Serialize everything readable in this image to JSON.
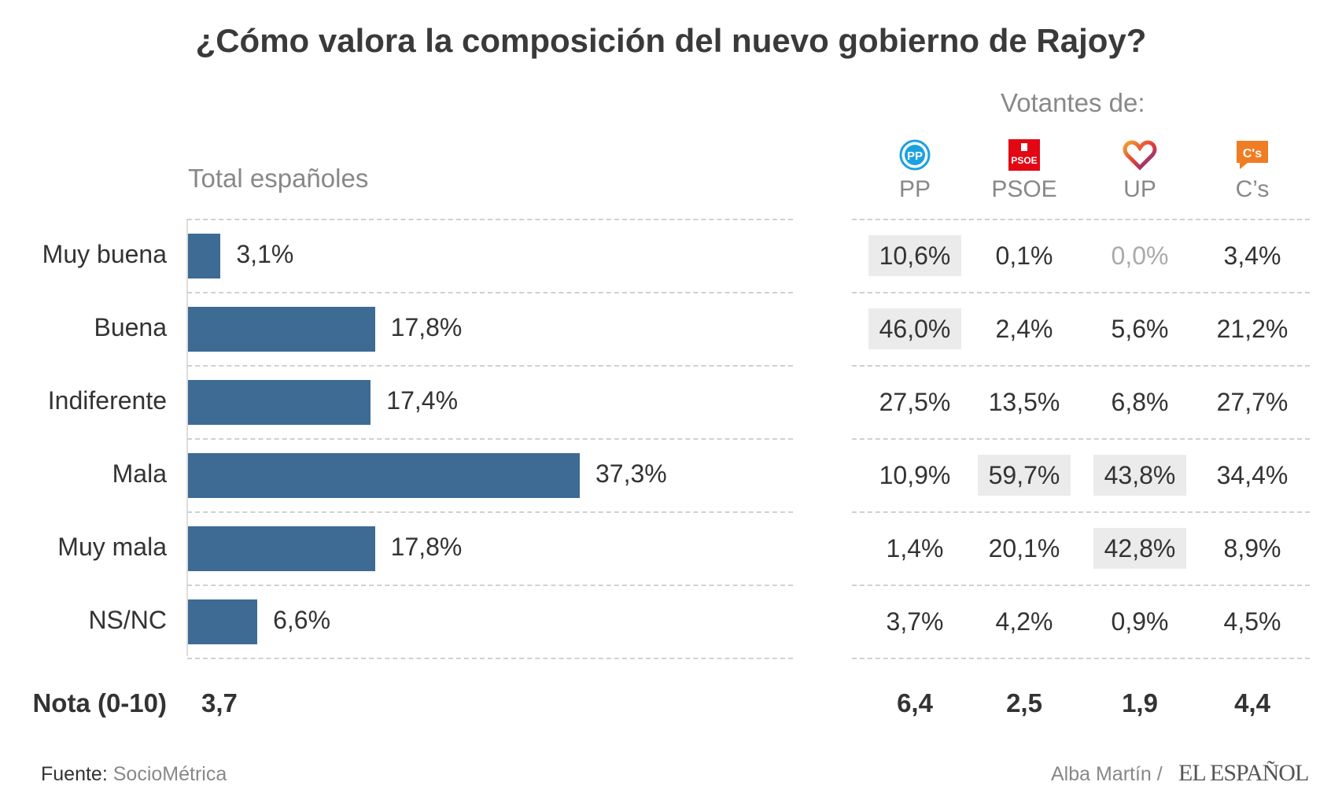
{
  "chart_data": {
    "type": "bar",
    "title": "¿Cómo valora la composición del nuevo gobierno de Rajoy?",
    "total_label": "Total españoles",
    "group_label": "Votantes de:",
    "categories": [
      "Muy buena",
      "Buena",
      "Indiferente",
      "Mala",
      "Muy mala",
      "NS/NC"
    ],
    "values": [
      3.1,
      17.8,
      17.4,
      37.3,
      17.8,
      6.6
    ],
    "value_labels": [
      "3,1%",
      "17,8%",
      "17,4%",
      "37,3%",
      "17,8%",
      "6,6%"
    ],
    "xlim": [
      0,
      57
    ],
    "bar_color": "#3d6b94",
    "parties": [
      {
        "name": "PP",
        "logo": "pp-logo-icon",
        "values": [
          "10,6%",
          "46,0%",
          "27,5%",
          "10,9%",
          "1,4%",
          "3,7%"
        ],
        "highlight": [
          true,
          true,
          false,
          false,
          false,
          false
        ],
        "nota": "6,4"
      },
      {
        "name": "PSOE",
        "logo": "psoe-logo-icon",
        "values": [
          "0,1%",
          "2,4%",
          "13,5%",
          "59,7%",
          "20,1%",
          "4,2%"
        ],
        "highlight": [
          false,
          false,
          false,
          true,
          false,
          false
        ],
        "nota": "2,5"
      },
      {
        "name": "UP",
        "logo": "up-heart-logo-icon",
        "values": [
          "0,0%",
          "5,6%",
          "6,8%",
          "43,8%",
          "42,8%",
          "0,9%"
        ],
        "highlight": [
          false,
          false,
          false,
          true,
          true,
          false
        ],
        "nota": "1,9"
      },
      {
        "name": "C’s",
        "logo": "cs-logo-icon",
        "values": [
          "3,4%",
          "21,2%",
          "27,7%",
          "34,4%",
          "8,9%",
          "4,5%"
        ],
        "highlight": [
          false,
          false,
          false,
          false,
          false,
          false
        ],
        "nota": "4,4"
      }
    ],
    "nota_label": "Nota (0-10)",
    "nota_total": "3,7"
  },
  "footer": {
    "source_prefix": "Fuente:",
    "source_name": "SocioMétrica",
    "credit": "Alba Martín /",
    "brand": "EL ESPAÑOL"
  },
  "colors": {
    "highlight_cell": "#ebebeb",
    "pp": "#1ba1e2",
    "psoe": "#e30613",
    "cs": "#f07c23"
  }
}
